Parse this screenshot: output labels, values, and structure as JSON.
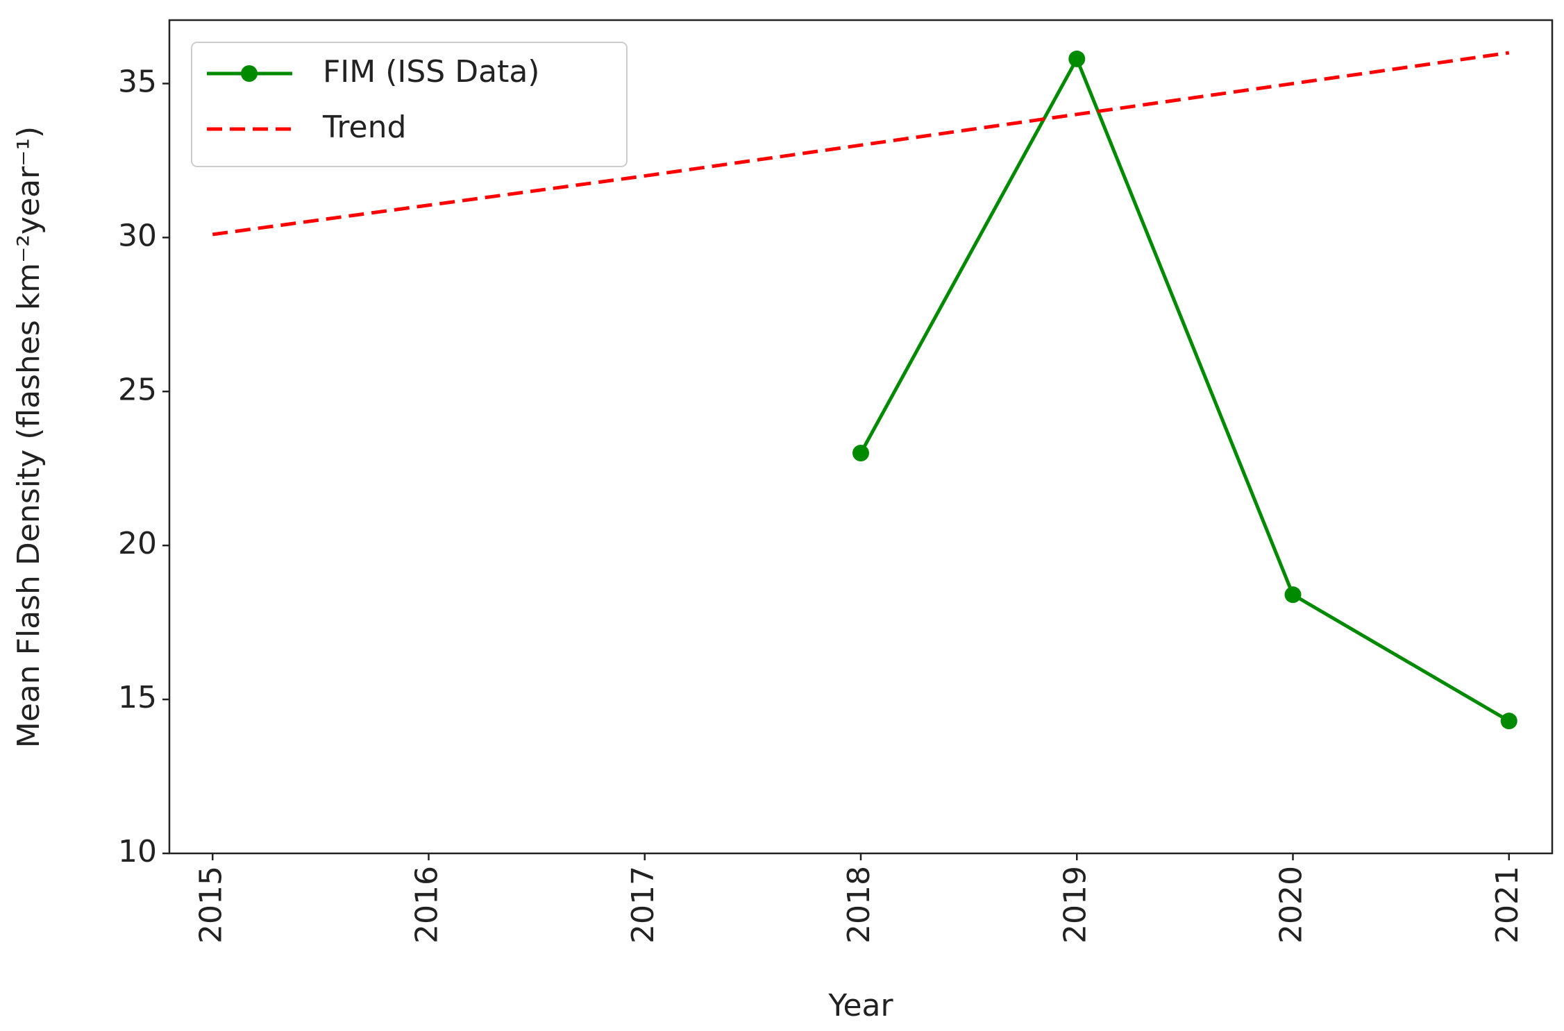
{
  "chart_data": {
    "type": "line",
    "xlabel": "Year",
    "ylabel": "Mean Flash Density (flashes km⁻²year⁻¹)",
    "x": [
      2015,
      2016,
      2017,
      2018,
      2019,
      2020,
      2021
    ],
    "series": [
      {
        "name": "FIM (ISS Data)",
        "color": "#008a00",
        "marker": "o",
        "linestyle": "solid",
        "values": [
          null,
          null,
          null,
          23,
          35.8,
          18.4,
          14.3
        ]
      },
      {
        "name": "Trend",
        "color": "#ff0000",
        "marker": "none",
        "linestyle": "dashed",
        "values": [
          30.1,
          31.05,
          32.0,
          33.0,
          34.0,
          35.0,
          36.0
        ]
      }
    ],
    "xlim": [
      2014.8,
      2021.2
    ],
    "xticks": [
      2015,
      2016,
      2017,
      2018,
      2019,
      2020,
      2021
    ],
    "ylim": [
      10,
      37.06
    ],
    "yticks": [
      10,
      15,
      20,
      25,
      30,
      35
    ],
    "grid": false,
    "legend": "upper left"
  }
}
